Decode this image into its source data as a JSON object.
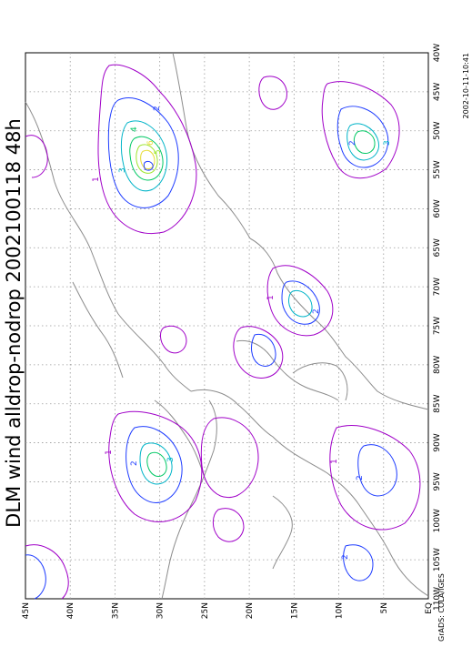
{
  "title": "DLM wind alldrop-nodrop 2002100118 48h",
  "credit_left": "GrADS: COLA/IGES",
  "credit_right": "2002-10-11-10:41",
  "lat_ticks": [
    "45N",
    "40N",
    "35N",
    "30N",
    "25N",
    "20N",
    "15N",
    "10N",
    "5N",
    "EQ"
  ],
  "lon_ticks": [
    "40W",
    "45W",
    "50W",
    "55W",
    "60W",
    "65W",
    "70W",
    "75W",
    "80W",
    "85W",
    "90W",
    "95W",
    "100W",
    "105W",
    "110W"
  ],
  "contour_labels": [
    "1",
    "2",
    "3",
    "4",
    "5",
    "6"
  ],
  "colors": {
    "level1": "#a000c8",
    "level2": "#1e3cff",
    "level3": "#00b4c8",
    "level4": "#00c864",
    "level5": "#a0e632",
    "level6": "#e6dc32",
    "coastline": "#8c8c8c"
  }
}
